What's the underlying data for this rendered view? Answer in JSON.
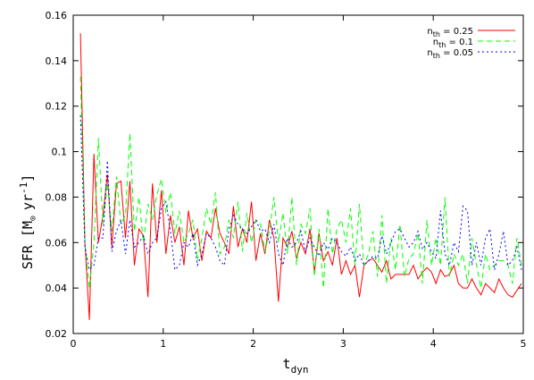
{
  "chart_data": {
    "type": "line",
    "title": "",
    "xlabel": "t",
    "xlabel_sub": "dyn",
    "ylabel": "SFR  [M",
    "ylabel_sub": "⊙",
    "ylabel_unit": "yr",
    "ylabel_exp": "-1",
    "ylabel_close": "]",
    "xlim": [
      0,
      5
    ],
    "ylim": [
      0.02,
      0.16
    ],
    "xticks": [
      0,
      1,
      2,
      3,
      4,
      5
    ],
    "yticks": [
      0.02,
      0.04,
      0.06,
      0.08,
      0.1,
      0.12,
      0.14,
      0.16
    ],
    "xtick_labels": [
      "0",
      "1",
      "2",
      "3",
      "4",
      "5"
    ],
    "ytick_labels": [
      "0.02",
      "0.04",
      "0.06",
      "0.08",
      "0.1",
      "0.12",
      "0.14",
      "0.16"
    ],
    "grid": false,
    "legend_position": "top-right",
    "series": [
      {
        "name_main": "n",
        "name_sub": "th",
        "name_rest": " = 0.25",
        "color": "#ff0000",
        "dash": "solid",
        "x": [
          0.08,
          0.13,
          0.18,
          0.23,
          0.28,
          0.33,
          0.38,
          0.43,
          0.48,
          0.53,
          0.58,
          0.63,
          0.68,
          0.73,
          0.78,
          0.83,
          0.88,
          0.93,
          0.98,
          1.03,
          1.08,
          1.13,
          1.18,
          1.23,
          1.28,
          1.33,
          1.38,
          1.43,
          1.48,
          1.53,
          1.58,
          1.63,
          1.68,
          1.73,
          1.78,
          1.83,
          1.88,
          1.93,
          1.98,
          2.03,
          2.08,
          2.13,
          2.18,
          2.23,
          2.28,
          2.33,
          2.38,
          2.43,
          2.48,
          2.53,
          2.58,
          2.63,
          2.68,
          2.73,
          2.78,
          2.83,
          2.88,
          2.93,
          2.98,
          3.03,
          3.08,
          3.13,
          3.18,
          3.23,
          3.28,
          3.33,
          3.38,
          3.43,
          3.48,
          3.53,
          3.58,
          3.63,
          3.68,
          3.73,
          3.78,
          3.83,
          3.88,
          3.93,
          3.98,
          4.03,
          4.08,
          4.13,
          4.18,
          4.23,
          4.28,
          4.33,
          4.38,
          4.43,
          4.48,
          4.53,
          4.58,
          4.63,
          4.68,
          4.73,
          4.78,
          4.83,
          4.88,
          4.93,
          4.98
        ],
        "values": [
          0.152,
          0.06,
          0.026,
          0.099,
          0.06,
          0.072,
          0.09,
          0.058,
          0.086,
          0.087,
          0.062,
          0.087,
          0.05,
          0.066,
          0.063,
          0.036,
          0.086,
          0.06,
          0.083,
          0.055,
          0.072,
          0.06,
          0.067,
          0.05,
          0.074,
          0.062,
          0.066,
          0.052,
          0.065,
          0.062,
          0.075,
          0.064,
          0.06,
          0.055,
          0.076,
          0.058,
          0.066,
          0.06,
          0.078,
          0.052,
          0.064,
          0.055,
          0.07,
          0.062,
          0.034,
          0.062,
          0.058,
          0.065,
          0.053,
          0.06,
          0.055,
          0.066,
          0.047,
          0.064,
          0.052,
          0.056,
          0.05,
          0.062,
          0.046,
          0.052,
          0.046,
          0.05,
          0.036,
          0.05,
          0.052,
          0.053,
          0.05,
          0.047,
          0.052,
          0.044,
          0.046,
          0.046,
          0.046,
          0.046,
          0.05,
          0.044,
          0.047,
          0.049,
          0.047,
          0.042,
          0.048,
          0.045,
          0.046,
          0.05,
          0.042,
          0.04,
          0.04,
          0.044,
          0.04,
          0.037,
          0.042,
          0.04,
          0.038,
          0.044,
          0.04,
          0.037,
          0.036,
          0.039,
          0.042
        ]
      },
      {
        "name_main": "n",
        "name_sub": "th",
        "name_rest": " = 0.1",
        "color": "#00ff00",
        "dash": "6,4",
        "x": [
          0.08,
          0.13,
          0.18,
          0.23,
          0.28,
          0.33,
          0.38,
          0.43,
          0.48,
          0.53,
          0.58,
          0.63,
          0.68,
          0.73,
          0.78,
          0.83,
          0.88,
          0.93,
          0.98,
          1.03,
          1.08,
          1.13,
          1.18,
          1.23,
          1.28,
          1.33,
          1.38,
          1.43,
          1.48,
          1.53,
          1.58,
          1.63,
          1.68,
          1.73,
          1.78,
          1.83,
          1.88,
          1.93,
          1.98,
          2.03,
          2.08,
          2.13,
          2.18,
          2.23,
          2.28,
          2.33,
          2.38,
          2.43,
          2.48,
          2.53,
          2.58,
          2.63,
          2.68,
          2.73,
          2.78,
          2.83,
          2.88,
          2.93,
          2.98,
          3.03,
          3.08,
          3.13,
          3.18,
          3.23,
          3.28,
          3.33,
          3.38,
          3.43,
          3.48,
          3.53,
          3.58,
          3.63,
          3.68,
          3.73,
          3.78,
          3.83,
          3.88,
          3.93,
          3.98,
          4.03,
          4.08,
          4.13,
          4.18,
          4.23,
          4.28,
          4.33,
          4.38,
          4.43,
          4.48,
          4.53,
          4.58,
          4.63,
          4.68,
          4.73,
          4.78,
          4.83,
          4.88,
          4.93,
          4.98
        ],
        "values": [
          0.133,
          0.06,
          0.04,
          0.06,
          0.106,
          0.068,
          0.086,
          0.065,
          0.089,
          0.068,
          0.072,
          0.108,
          0.065,
          0.08,
          0.06,
          0.077,
          0.07,
          0.081,
          0.088,
          0.073,
          0.082,
          0.064,
          0.074,
          0.06,
          0.064,
          0.07,
          0.052,
          0.062,
          0.075,
          0.068,
          0.082,
          0.055,
          0.058,
          0.07,
          0.062,
          0.078,
          0.056,
          0.073,
          0.06,
          0.07,
          0.068,
          0.056,
          0.065,
          0.08,
          0.06,
          0.073,
          0.055,
          0.08,
          0.05,
          0.068,
          0.064,
          0.075,
          0.045,
          0.066,
          0.04,
          0.075,
          0.055,
          0.066,
          0.07,
          0.06,
          0.075,
          0.05,
          0.077,
          0.05,
          0.055,
          0.065,
          0.045,
          0.072,
          0.042,
          0.062,
          0.048,
          0.068,
          0.045,
          0.053,
          0.055,
          0.064,
          0.042,
          0.07,
          0.05,
          0.062,
          0.05,
          0.08,
          0.045,
          0.055,
          0.05,
          0.055,
          0.042,
          0.062,
          0.05,
          0.04,
          0.055,
          0.048,
          0.05,
          0.052,
          0.052,
          0.05,
          0.042,
          0.062,
          0.05
        ]
      },
      {
        "name_main": "n",
        "name_sub": "th",
        "name_rest": " = 0.05",
        "color": "#0000ff",
        "dash": "2,3",
        "x": [
          0.08,
          0.13,
          0.18,
          0.23,
          0.28,
          0.33,
          0.38,
          0.43,
          0.48,
          0.53,
          0.58,
          0.63,
          0.68,
          0.73,
          0.78,
          0.83,
          0.88,
          0.93,
          0.98,
          1.03,
          1.08,
          1.13,
          1.18,
          1.23,
          1.28,
          1.33,
          1.38,
          1.43,
          1.48,
          1.53,
          1.58,
          1.63,
          1.68,
          1.73,
          1.78,
          1.83,
          1.88,
          1.93,
          1.98,
          2.03,
          2.08,
          2.13,
          2.18,
          2.23,
          2.28,
          2.33,
          2.38,
          2.43,
          2.48,
          2.53,
          2.58,
          2.63,
          2.68,
          2.73,
          2.78,
          2.83,
          2.88,
          2.93,
          2.98,
          3.03,
          3.08,
          3.13,
          3.18,
          3.23,
          3.28,
          3.33,
          3.38,
          3.43,
          3.48,
          3.53,
          3.58,
          3.63,
          3.68,
          3.73,
          3.78,
          3.83,
          3.88,
          3.93,
          3.98,
          4.03,
          4.08,
          4.13,
          4.18,
          4.23,
          4.28,
          4.33,
          4.38,
          4.43,
          4.48,
          4.53,
          4.58,
          4.63,
          4.68,
          4.73,
          4.78,
          4.83,
          4.88,
          4.93,
          4.98
        ],
        "values": [
          0.116,
          0.058,
          0.048,
          0.05,
          0.062,
          0.062,
          0.096,
          0.056,
          0.065,
          0.07,
          0.055,
          0.07,
          0.058,
          0.06,
          0.063,
          0.055,
          0.06,
          0.062,
          0.075,
          0.078,
          0.065,
          0.048,
          0.05,
          0.06,
          0.058,
          0.064,
          0.05,
          0.055,
          0.064,
          0.062,
          0.058,
          0.052,
          0.05,
          0.066,
          0.072,
          0.068,
          0.066,
          0.064,
          0.067,
          0.07,
          0.065,
          0.066,
          0.06,
          0.068,
          0.055,
          0.05,
          0.062,
          0.058,
          0.06,
          0.065,
          0.056,
          0.062,
          0.058,
          0.054,
          0.06,
          0.057,
          0.062,
          0.06,
          0.056,
          0.054,
          0.058,
          0.052,
          0.055,
          0.05,
          0.052,
          0.054,
          0.053,
          0.063,
          0.055,
          0.06,
          0.065,
          0.066,
          0.062,
          0.058,
          0.06,
          0.065,
          0.057,
          0.06,
          0.056,
          0.053,
          0.074,
          0.055,
          0.05,
          0.06,
          0.056,
          0.076,
          0.074,
          0.05,
          0.06,
          0.05,
          0.062,
          0.066,
          0.048,
          0.055,
          0.065,
          0.05,
          0.052,
          0.058,
          0.048
        ]
      }
    ]
  }
}
